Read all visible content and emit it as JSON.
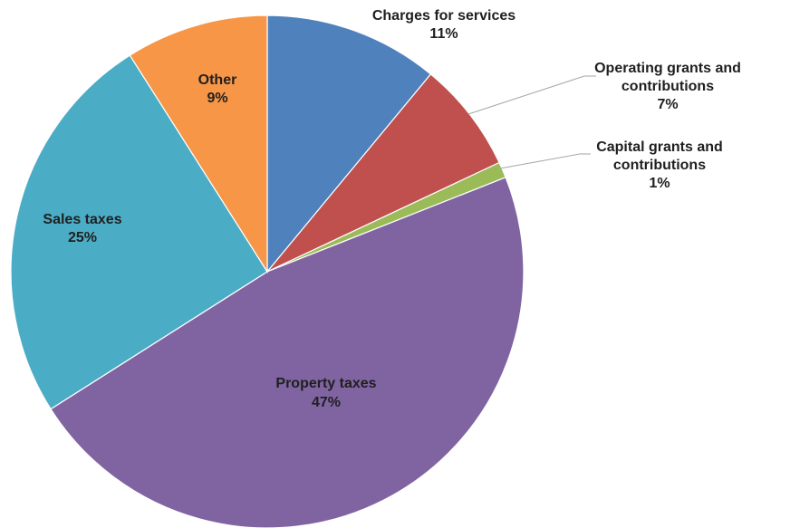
{
  "chart_data": {
    "type": "pie",
    "title": "",
    "start_angle_deg": 0,
    "direction": "clockwise",
    "slices": [
      {
        "label_lines": [
          "Charges for services"
        ],
        "pct_label": "11%",
        "value": 11,
        "color": "#4f81bd"
      },
      {
        "label_lines": [
          "Operating grants and",
          "contributions"
        ],
        "pct_label": "7%",
        "value": 7,
        "color": "#c0504d"
      },
      {
        "label_lines": [
          "Capital grants and",
          "contributions"
        ],
        "pct_label": "1%",
        "value": 1,
        "color": "#9bbb59"
      },
      {
        "label_lines": [
          "Property taxes"
        ],
        "pct_label": "47%",
        "value": 47,
        "color": "#8064a2"
      },
      {
        "label_lines": [
          "Sales taxes"
        ],
        "pct_label": "25%",
        "value": 25,
        "color": "#4bacc6"
      },
      {
        "label_lines": [
          "Other"
        ],
        "pct_label": "9%",
        "value": 9,
        "color": "#f79646"
      }
    ]
  }
}
